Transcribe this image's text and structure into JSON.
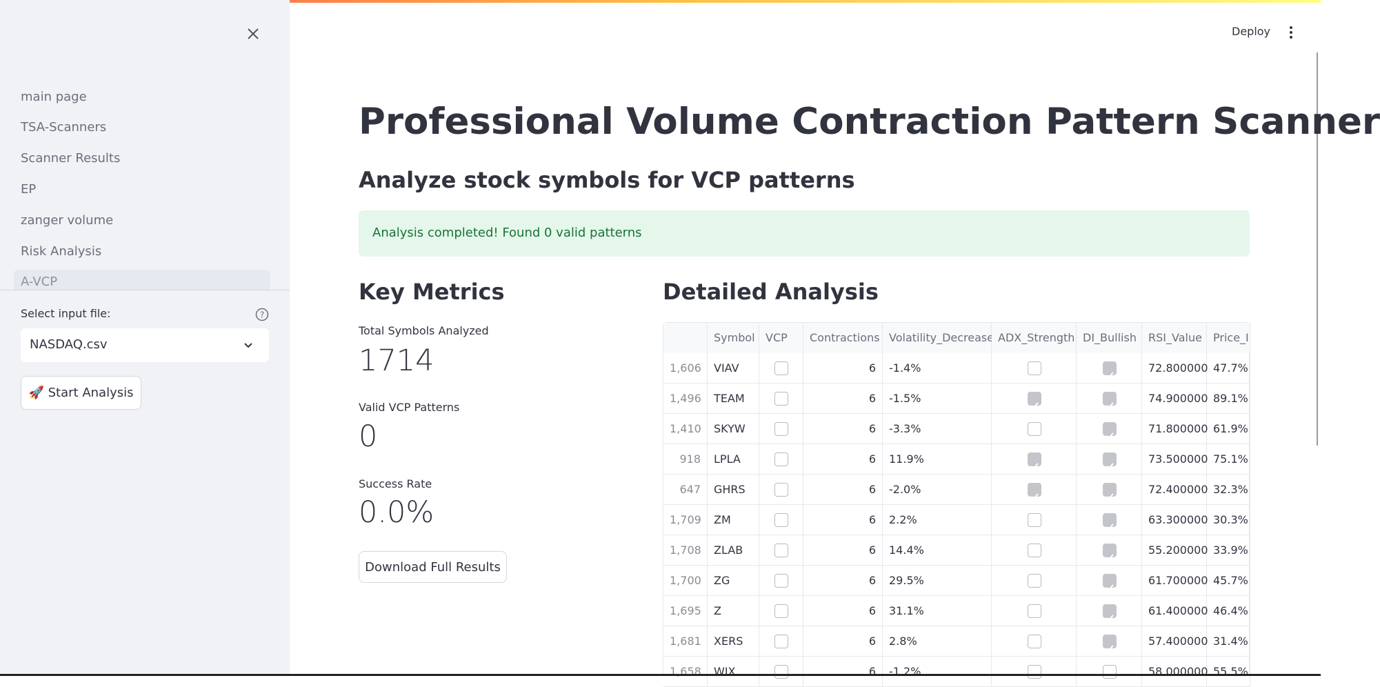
{
  "sidebar": {
    "nav": [
      "main page",
      "TSA-Scanners",
      "Scanner Results",
      "EP",
      "zanger volume",
      "Risk Analysis",
      "A-VCP"
    ],
    "select_label": "Select input file:",
    "select_value": "NASDAQ.csv",
    "button": "🚀 Start Analysis"
  },
  "header": {
    "deploy": "Deploy"
  },
  "main": {
    "title": "Professional Volume Contraction Pattern Scanner",
    "subtitle": "Analyze stock symbols for VCP patterns",
    "message": "Analysis completed! Found 0 valid patterns",
    "metrics_heading": "Key Metrics",
    "metrics": [
      {
        "label": "Total Symbols Analyzed",
        "value": "1714"
      },
      {
        "label": "Valid VCP Patterns",
        "value": "0"
      },
      {
        "label": "Success Rate",
        "value": "0.0%"
      }
    ],
    "download": "Download Full Results",
    "table_heading": "Detailed Analysis"
  },
  "table": {
    "columns": [
      "",
      "Symbol",
      "VCP",
      "Contractions",
      "Volatility_Decrease",
      "ADX_Strength",
      "DI_Bullish",
      "RSI_Value",
      "Price_I"
    ],
    "rows": [
      [
        "1,606",
        "VIAV",
        false,
        "6",
        "-1.4%",
        false,
        true,
        "72.800000",
        "47.7%"
      ],
      [
        "1,496",
        "TEAM",
        false,
        "6",
        "-1.5%",
        true,
        true,
        "74.900000",
        "89.1%"
      ],
      [
        "1,410",
        "SKYW",
        false,
        "6",
        "-3.3%",
        false,
        true,
        "71.800000",
        "61.9%"
      ],
      [
        "918",
        "LPLA",
        false,
        "6",
        "11.9%",
        true,
        true,
        "73.500000",
        "75.1%"
      ],
      [
        "647",
        "GHRS",
        false,
        "6",
        "-2.0%",
        true,
        true,
        "72.400000",
        "32.3%"
      ],
      [
        "1,709",
        "ZM",
        false,
        "6",
        "2.2%",
        false,
        true,
        "63.300000",
        "30.3%"
      ],
      [
        "1,708",
        "ZLAB",
        false,
        "6",
        "14.4%",
        false,
        true,
        "55.200000",
        "33.9%"
      ],
      [
        "1,700",
        "ZG",
        false,
        "6",
        "29.5%",
        false,
        true,
        "61.700000",
        "45.7%"
      ],
      [
        "1,695",
        "Z",
        false,
        "6",
        "31.1%",
        false,
        true,
        "61.400000",
        "46.4%"
      ],
      [
        "1,681",
        "XERS",
        false,
        "6",
        "2.8%",
        false,
        true,
        "57.400000",
        "31.4%"
      ],
      [
        "1,658",
        "WIX",
        false,
        "6",
        "-1.2%",
        false,
        false,
        "58.000000",
        "55.5%"
      ]
    ]
  }
}
